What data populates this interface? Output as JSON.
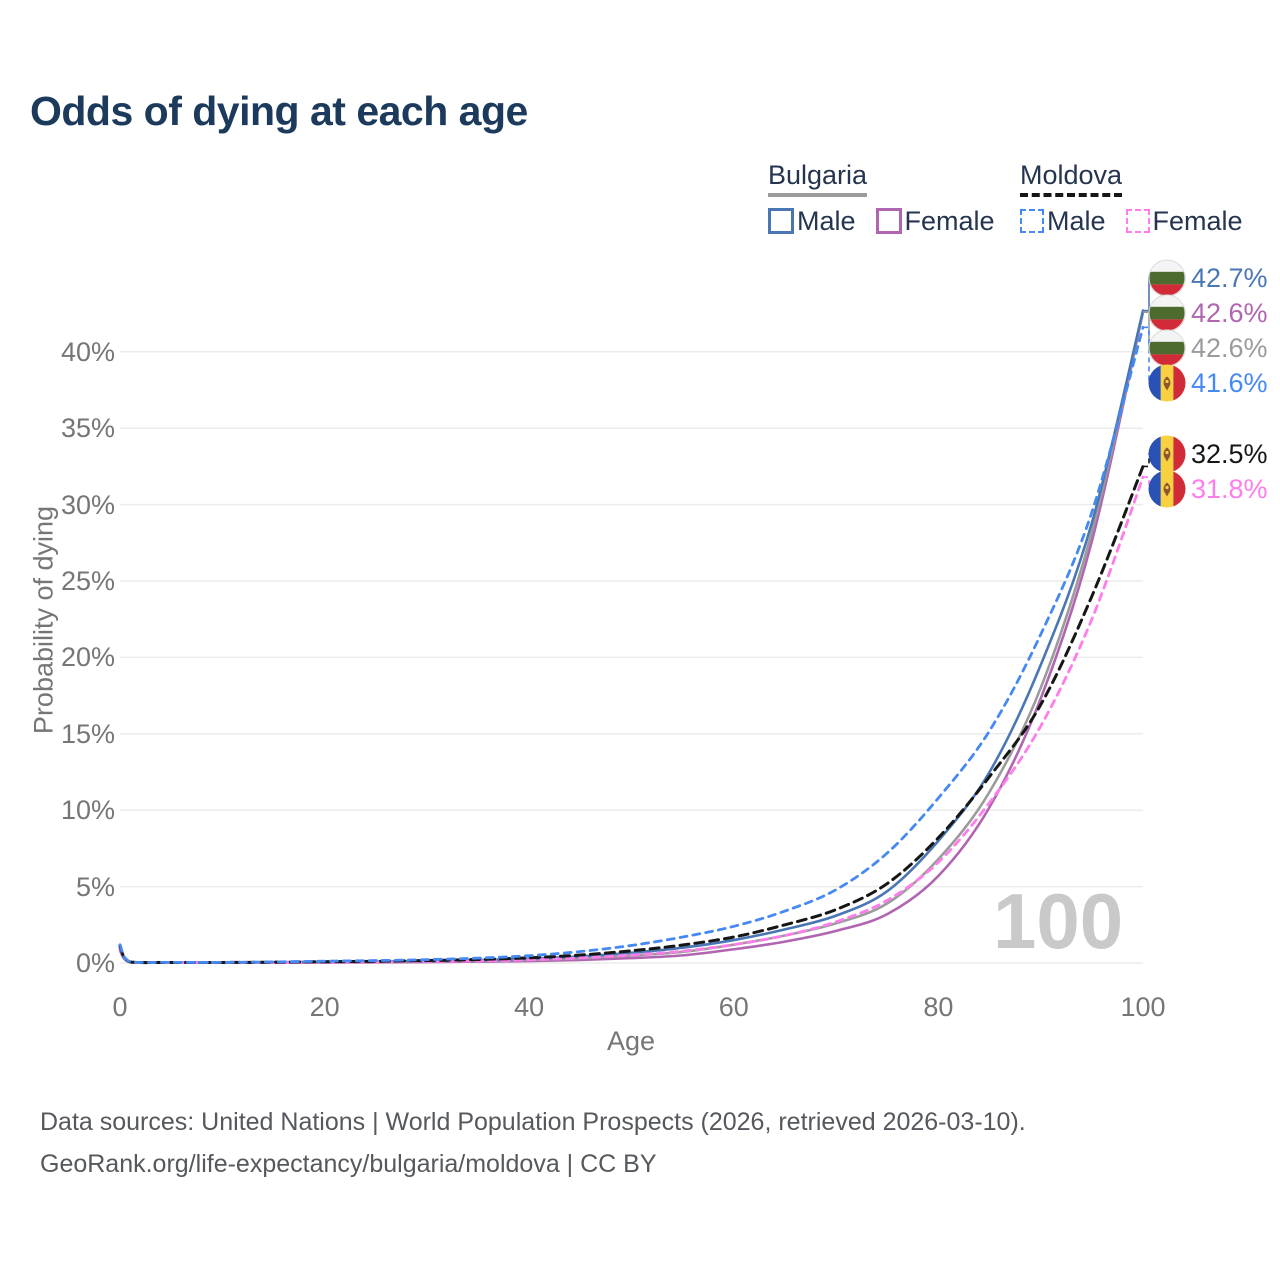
{
  "title": "Odds of dying at each age",
  "watermark_age": "100",
  "legend": {
    "groups": [
      {
        "label": "Bulgaria",
        "line_style": "solid",
        "underline_color": "#9b9b9b",
        "items": [
          {
            "label": "Male",
            "color": "#4a77b4",
            "dashed": false
          },
          {
            "label": "Female",
            "color": "#b065b0",
            "dashed": false
          }
        ]
      },
      {
        "label": "Moldova",
        "line_style": "dashed",
        "underline_color": "#161616",
        "items": [
          {
            "label": "Male",
            "color": "#4689f3",
            "dashed": true
          },
          {
            "label": "Female",
            "color": "#ff7dea",
            "dashed": true
          }
        ]
      }
    ]
  },
  "flags": {
    "bulgaria": {
      "white": "#f3f4f3",
      "green": "#4d6b2f",
      "red": "#d22b38"
    },
    "moldova": {
      "blue": "#2a52b5",
      "yellow": "#f9d03f",
      "red": "#d22b38",
      "emblem": "#8a5731"
    }
  },
  "chart_data": {
    "type": "line",
    "title": "Odds of dying at each age",
    "xlabel": "Age",
    "ylabel": "Probability of dying",
    "xlim": [
      0,
      100
    ],
    "ylim_percent": [
      0,
      45
    ],
    "grid": "horizontal",
    "legend_position": "top-right",
    "x_ticks": [
      0,
      20,
      40,
      60,
      80,
      100
    ],
    "y_tick_values": [
      0,
      5,
      10,
      15,
      20,
      25,
      30,
      35,
      40
    ],
    "y_tick_labels": [
      "0%",
      "5%",
      "10%",
      "15%",
      "20%",
      "25%",
      "30%",
      "35%",
      "40%"
    ],
    "x": [
      0,
      1,
      5,
      10,
      15,
      20,
      25,
      30,
      35,
      40,
      45,
      50,
      55,
      60,
      65,
      70,
      75,
      80,
      85,
      90,
      95,
      100
    ],
    "series": [
      {
        "name": "Bulgaria Female",
        "country": "bulgaria",
        "sex": "female",
        "color": "#b065b0",
        "dashed": false,
        "stroke_width": 2.6,
        "end_label": "42.6%",
        "values": [
          0.8,
          0.05,
          0.02,
          0.02,
          0.03,
          0.03,
          0.04,
          0.06,
          0.09,
          0.13,
          0.2,
          0.32,
          0.5,
          0.9,
          1.4,
          2.1,
          3.2,
          5.7,
          10.2,
          17.3,
          27.6,
          42.6
        ]
      },
      {
        "name": "Bulgaria Total",
        "country": "bulgaria",
        "sex": "both",
        "color": "#9b9b9b",
        "dashed": false,
        "stroke_width": 2.6,
        "end_label": "42.6%",
        "values": [
          0.9,
          0.055,
          0.025,
          0.025,
          0.04,
          0.055,
          0.07,
          0.1,
          0.14,
          0.2,
          0.31,
          0.49,
          0.73,
          1.2,
          1.8,
          2.6,
          3.9,
          6.8,
          11.2,
          18.0,
          28.2,
          42.6
        ]
      },
      {
        "name": "Bulgaria Male",
        "country": "bulgaria",
        "sex": "male",
        "color": "#4a77b4",
        "dashed": false,
        "stroke_width": 2.6,
        "end_label": "42.7%",
        "values": [
          1.0,
          0.06,
          0.03,
          0.03,
          0.05,
          0.08,
          0.1,
          0.13,
          0.19,
          0.28,
          0.43,
          0.67,
          1.0,
          1.5,
          2.2,
          3.1,
          4.7,
          8.0,
          12.5,
          19.5,
          28.8,
          42.7
        ]
      },
      {
        "name": "Moldova Female",
        "country": "moldova",
        "sex": "female",
        "color": "#ff7dea",
        "dashed": true,
        "stroke_width": 2.8,
        "end_label": "31.8%",
        "values": [
          1.0,
          0.06,
          0.03,
          0.03,
          0.04,
          0.05,
          0.07,
          0.1,
          0.14,
          0.21,
          0.33,
          0.52,
          0.78,
          1.2,
          1.8,
          2.7,
          4.1,
          6.6,
          10.5,
          15.5,
          22.5,
          31.8
        ]
      },
      {
        "name": "Moldova Total",
        "country": "moldova",
        "sex": "both",
        "color": "#161616",
        "dashed": true,
        "stroke_width": 3,
        "end_label": "32.5%",
        "values": [
          1.1,
          0.07,
          0.035,
          0.035,
          0.055,
          0.085,
          0.115,
          0.16,
          0.23,
          0.34,
          0.52,
          0.8,
          1.18,
          1.7,
          2.5,
          3.5,
          5.2,
          8.2,
          12.2,
          16.9,
          24.0,
          32.5
        ]
      },
      {
        "name": "Moldova Male",
        "country": "moldova",
        "sex": "male",
        "color": "#4689f3",
        "dashed": true,
        "stroke_width": 2.8,
        "end_label": "41.6%",
        "values": [
          1.2,
          0.08,
          0.04,
          0.04,
          0.07,
          0.12,
          0.16,
          0.22,
          0.32,
          0.48,
          0.75,
          1.15,
          1.7,
          2.4,
          3.4,
          4.8,
          7.2,
          10.8,
          15.2,
          21.5,
          29.5,
          41.6
        ]
      }
    ]
  },
  "footer": {
    "line1": "Data sources: United Nations | World Population Prospects (2026, retrieved 2026-03-10).",
    "line2": "GeoRank.org/life-expectancy/bulgaria/moldova | CC BY"
  }
}
